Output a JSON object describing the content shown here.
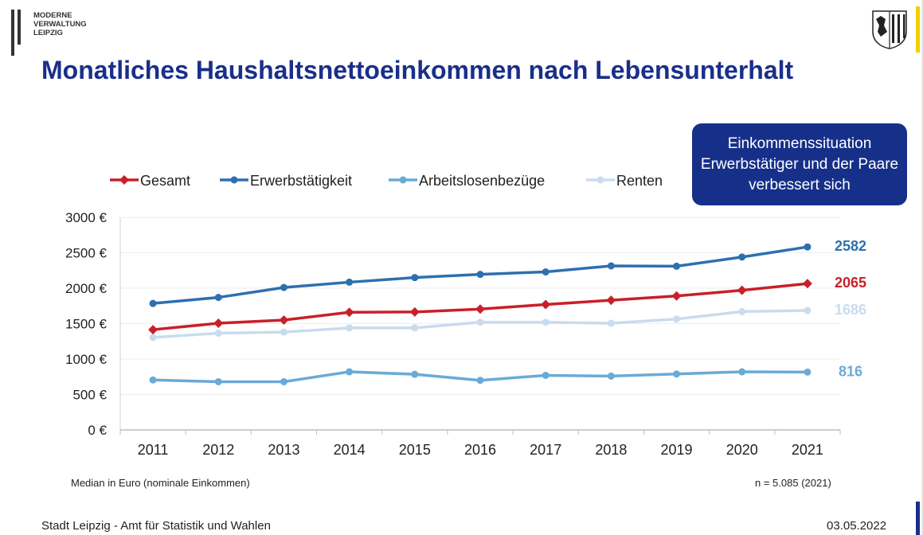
{
  "header": {
    "logo_text": "MODERNE\nVERWALTUNG\nLEIPZIG",
    "title": "Monatliches Haushaltsnettoeinkommen nach Lebensunterhalt",
    "crest_icon": "leipzig-coat-of-arms-icon"
  },
  "callout": {
    "text": "Einkommenssituation Erwerbstätiger und der Paare verbessert sich"
  },
  "notes": {
    "left": "Median in Euro (nominale Einkommen)",
    "right": "n = 5.085 (2021)"
  },
  "footer": {
    "source": "Stadt Leipzig  -  Amt für Statistik und Wahlen",
    "date": "03.05.2022"
  },
  "colors": {
    "title": "#1a2f8a",
    "callout_bg": "#16308a",
    "accent_yellow": "#f2d000"
  },
  "chart_data": {
    "type": "line",
    "title": "Monatliches Haushaltsnettoeinkommen nach Lebensunterhalt",
    "xlabel": "",
    "ylabel": "",
    "categories": [
      "2011",
      "2012",
      "2013",
      "2014",
      "2015",
      "2016",
      "2017",
      "2018",
      "2019",
      "2020",
      "2021"
    ],
    "ylim": [
      0,
      3000
    ],
    "yticks": [
      0,
      500,
      1000,
      1500,
      2000,
      2500,
      3000
    ],
    "ytick_labels": [
      "0 €",
      "500 €",
      "1000 €",
      "1500 €",
      "2000 €",
      "2500 €",
      "3000 €"
    ],
    "grid": true,
    "legend_placement": "top",
    "series": [
      {
        "name": "Gesamt",
        "color": "#c8202a",
        "marker": "diamond",
        "values": [
          1415,
          1505,
          1550,
          1660,
          1665,
          1705,
          1770,
          1830,
          1890,
          1970,
          2065
        ],
        "end_label": "2065"
      },
      {
        "name": "Erwerbstätigkeit",
        "color": "#2e6fb0",
        "marker": "circle",
        "values": [
          1785,
          1870,
          2010,
          2085,
          2150,
          2195,
          2230,
          2315,
          2310,
          2440,
          2582
        ],
        "end_label": "2582"
      },
      {
        "name": "Arbeitslosenbezüge",
        "color": "#6aaad6",
        "marker": "circle",
        "values": [
          705,
          680,
          680,
          820,
          785,
          700,
          770,
          760,
          790,
          820,
          816
        ],
        "end_label": "816"
      },
      {
        "name": "Renten",
        "color": "#c9dcee",
        "marker": "circle",
        "values": [
          1305,
          1365,
          1380,
          1440,
          1440,
          1520,
          1520,
          1505,
          1565,
          1670,
          1686
        ],
        "end_label": "1686"
      }
    ]
  }
}
